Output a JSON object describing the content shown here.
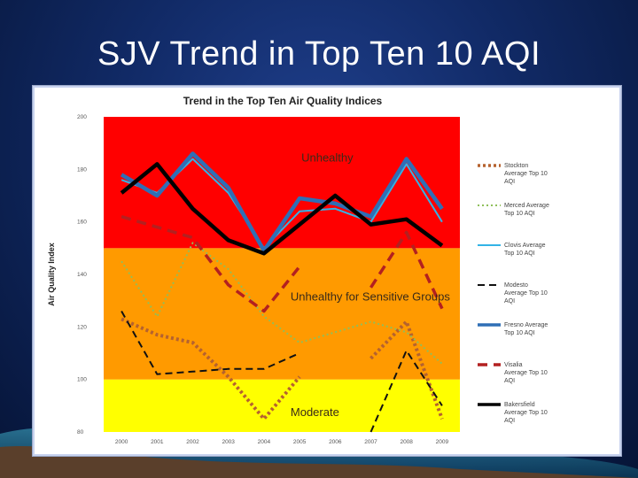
{
  "slide": {
    "title": "SJV Trend in Top Ten 10 AQI"
  },
  "chart_data": {
    "type": "line",
    "title": "Trend in the Top Ten Air Quality Indices",
    "xlabel": "",
    "ylabel": "Air Quality Index",
    "ylim": [
      80,
      200
    ],
    "yticks": [
      80,
      100,
      120,
      140,
      160,
      180,
      200
    ],
    "categories": [
      "2000",
      "2001",
      "2002",
      "2003",
      "2004",
      "2005",
      "2006",
      "2007",
      "2008",
      "2009"
    ],
    "bands": [
      {
        "label": "Moderate",
        "from": 80,
        "to": 100,
        "color": "#ffff00"
      },
      {
        "label": "Unhealthy for Sensitive Groups",
        "from": 100,
        "to": 150,
        "color": "#ff9a00"
      },
      {
        "label": "Unhealthy",
        "from": 150,
        "to": 200,
        "color": "#ff0000"
      }
    ],
    "series": [
      {
        "name": "Stockton Average Top 10 AQI",
        "color": "#b5622f",
        "style": "dotted-thick",
        "values": [
          123,
          117,
          114,
          101,
          85,
          101,
          null,
          108,
          122,
          85
        ]
      },
      {
        "name": "Merced Average Top 10 AQI",
        "color": "#8fbf5a",
        "style": "dotted",
        "values": [
          145,
          124,
          152,
          142,
          124,
          114,
          118,
          122,
          118,
          106
        ]
      },
      {
        "name": "Clovis Average Top 10 AQI",
        "color": "#33b3e6",
        "style": "solid",
        "values": [
          176,
          171,
          184,
          171,
          150,
          164,
          165,
          160,
          182,
          160
        ]
      },
      {
        "name": "Modesto Average Top 10 AQI",
        "color": "#111111",
        "style": "dashed",
        "values": [
          126,
          102,
          103,
          104,
          104,
          110,
          null,
          80,
          111,
          90
        ]
      },
      {
        "name": "Fresno Average Top 10 AQI",
        "color": "#2f6fb6",
        "style": "solid-thick",
        "values": [
          178,
          170,
          186,
          173,
          149,
          169,
          167,
          162,
          184,
          165
        ]
      },
      {
        "name": "Visalia Average Top 10 AQI",
        "color": "#b32020",
        "style": "dashed-thick",
        "values": [
          162,
          158,
          154,
          136,
          126,
          143,
          null,
          135,
          156,
          127
        ]
      },
      {
        "name": "Bakersfield Average Top 10 AQI",
        "color": "#000000",
        "style": "solid-thick",
        "values": [
          171,
          182,
          165,
          153,
          148,
          159,
          170,
          159,
          161,
          151
        ]
      }
    ]
  }
}
